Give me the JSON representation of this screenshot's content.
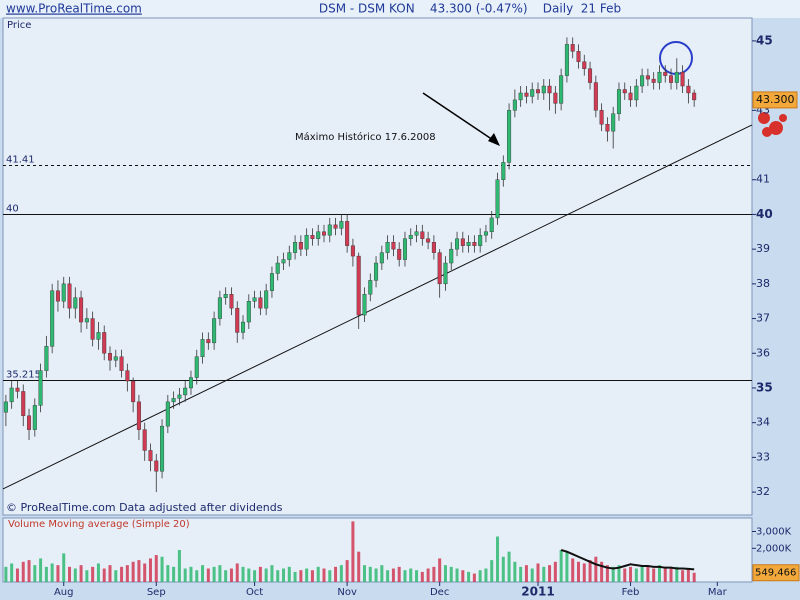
{
  "chart_data": {
    "type": "candlestick",
    "site": "www.ProRealTime.com",
    "title": "DSM - DSM KON    43.300 (-0.47%)    Daily  21 Feb",
    "price_axis_label": "Price",
    "footnote": "© ProRealTime.com Data adjusted after dividends",
    "annotation": "Máximo Histórico 17.6.2008",
    "last_price_label": "43.300",
    "up_color": "#2fb872",
    "down_color": "#d03a52",
    "xlim": [
      -0.5,
      129
    ],
    "xticks": [
      {
        "value": 10,
        "label": "Aug"
      },
      {
        "value": 26,
        "label": "Sep"
      },
      {
        "value": 43,
        "label": "Oct"
      },
      {
        "value": 59,
        "label": "Nov"
      },
      {
        "value": 75,
        "label": "Dec"
      },
      {
        "value": 92,
        "label": "2011"
      },
      {
        "value": 108,
        "label": "Feb"
      },
      {
        "value": 123,
        "label": "Mar"
      }
    ],
    "ylim": [
      31.34,
      45.66
    ],
    "yticks": [
      32,
      33,
      34,
      35,
      36,
      37,
      38,
      39,
      40,
      41,
      43,
      45
    ],
    "hlines": [
      41.41,
      40,
      35.215
    ],
    "hline_dashed": [
      true,
      false,
      false
    ],
    "trendline": {
      "x": [
        -0.5,
        129
      ],
      "y": [
        32.09,
        42.58
      ]
    },
    "open": [
      34.3,
      34.6,
      35.0,
      34.9,
      34.2,
      33.8,
      34.5,
      35.5,
      36.2,
      37.8,
      37.5,
      38.0,
      37.3,
      37.6,
      36.9,
      37.0,
      36.4,
      36.6,
      36.0,
      35.8,
      35.9,
      35.5,
      35.2,
      34.6,
      33.8,
      33.2,
      32.9,
      32.6,
      33.9,
      34.6,
      34.7,
      34.8,
      35.0,
      35.3,
      35.9,
      36.4,
      36.3,
      37.0,
      37.6,
      37.7,
      37.3,
      36.6,
      36.9,
      37.5,
      37.6,
      37.3,
      37.8,
      38.3,
      38.6,
      38.7,
      38.9,
      39.2,
      39.0,
      39.4,
      39.3,
      39.5,
      39.4,
      39.7,
      39.6,
      39.8,
      39.1,
      38.8,
      37.1,
      37.7,
      38.1,
      38.6,
      38.9,
      39.2,
      39.0,
      38.7,
      39.3,
      39.4,
      39.5,
      39.3,
      39.2,
      38.9,
      38.0,
      38.6,
      39.0,
      39.3,
      39.1,
      39.2,
      39.1,
      39.4,
      39.5,
      39.9,
      41.0,
      41.5,
      43.0,
      43.3,
      43.5,
      43.4,
      43.6,
      43.5,
      43.7,
      43.5,
      43.2,
      44.0,
      44.9,
      44.7,
      44.4,
      44.2,
      43.8,
      43.0,
      42.6,
      42.4,
      42.9,
      43.6,
      43.5,
      43.3,
      43.7,
      44.0,
      43.9,
      43.8,
      44.1,
      44.0,
      43.8,
      44.1,
      43.7,
      43.5
    ],
    "high": [
      34.8,
      35.2,
      35.2,
      35.1,
      34.4,
      34.7,
      35.7,
      36.5,
      38.0,
      38.1,
      38.2,
      38.2,
      37.9,
      37.8,
      37.3,
      37.2,
      36.9,
      36.8,
      36.2,
      36.1,
      36.1,
      35.7,
      35.3,
      34.8,
      34.0,
      33.4,
      33.1,
      34.1,
      34.8,
      34.9,
      35.0,
      35.2,
      35.5,
      36.1,
      36.6,
      36.6,
      37.2,
      37.8,
      37.9,
      37.9,
      37.5,
      37.1,
      37.7,
      37.8,
      37.8,
      38.0,
      38.5,
      38.8,
      38.9,
      39.1,
      39.4,
      39.4,
      39.6,
      39.6,
      39.7,
      39.7,
      39.9,
      39.9,
      40.0,
      40.0,
      39.3,
      38.9,
      37.9,
      38.3,
      38.8,
      39.1,
      39.4,
      39.4,
      39.2,
      39.5,
      39.6,
      39.7,
      39.7,
      39.5,
      39.4,
      39.0,
      38.8,
      39.2,
      39.5,
      39.5,
      39.4,
      39.4,
      39.6,
      39.7,
      40.1,
      41.2,
      41.7,
      43.2,
      43.6,
      43.7,
      43.7,
      43.8,
      43.8,
      43.9,
      43.9,
      43.7,
      44.2,
      45.1,
      45.1,
      44.9,
      44.6,
      44.4,
      44.0,
      43.2,
      42.8,
      43.1,
      43.8,
      43.8,
      43.7,
      43.9,
      44.2,
      44.2,
      44.1,
      44.3,
      44.3,
      44.2,
      44.5,
      44.3,
      43.9,
      43.6
    ],
    "low": [
      33.9,
      34.4,
      34.7,
      33.9,
      33.5,
      33.6,
      34.3,
      35.3,
      36.0,
      37.2,
      37.3,
      37.0,
      37.0,
      36.6,
      36.7,
      36.2,
      36.1,
      35.8,
      35.5,
      35.6,
      35.3,
      34.9,
      34.3,
      33.5,
      32.9,
      32.6,
      32.0,
      32.4,
      33.7,
      34.4,
      34.5,
      34.6,
      34.8,
      35.1,
      35.7,
      36.1,
      36.1,
      36.8,
      37.4,
      37.1,
      36.3,
      36.4,
      36.7,
      37.3,
      37.1,
      37.1,
      37.6,
      38.1,
      38.4,
      38.5,
      38.7,
      38.8,
      38.8,
      39.1,
      39.1,
      39.2,
      39.2,
      39.4,
      39.4,
      38.9,
      38.5,
      36.7,
      36.9,
      37.5,
      37.9,
      38.4,
      38.7,
      38.8,
      38.5,
      38.5,
      39.1,
      39.2,
      39.1,
      39.0,
      38.7,
      37.6,
      37.8,
      38.4,
      38.8,
      38.9,
      38.9,
      38.9,
      38.9,
      39.2,
      39.3,
      39.7,
      40.8,
      41.3,
      42.8,
      43.1,
      43.2,
      43.2,
      43.3,
      43.3,
      43.0,
      42.9,
      43.0,
      43.8,
      44.5,
      44.2,
      44.0,
      43.6,
      42.8,
      42.4,
      42.1,
      41.9,
      42.7,
      43.3,
      43.1,
      43.1,
      43.5,
      43.7,
      43.6,
      43.6,
      43.8,
      43.6,
      43.6,
      43.5,
      43.2,
      43.1
    ],
    "close": [
      34.6,
      35.0,
      34.9,
      34.2,
      33.8,
      34.5,
      35.5,
      36.2,
      37.8,
      37.5,
      38.0,
      37.3,
      37.6,
      36.9,
      37.0,
      36.4,
      36.6,
      36.0,
      35.8,
      35.9,
      35.5,
      35.2,
      34.6,
      33.8,
      33.2,
      32.9,
      32.6,
      33.9,
      34.6,
      34.7,
      34.8,
      35.0,
      35.3,
      35.9,
      36.4,
      36.3,
      37.0,
      37.6,
      37.7,
      37.3,
      36.6,
      36.9,
      37.5,
      37.6,
      37.3,
      37.8,
      38.3,
      38.6,
      38.7,
      38.9,
      39.2,
      39.0,
      39.4,
      39.3,
      39.5,
      39.4,
      39.7,
      39.6,
      39.8,
      39.1,
      38.8,
      37.1,
      37.7,
      38.1,
      38.6,
      38.9,
      39.2,
      39.0,
      38.7,
      39.3,
      39.4,
      39.5,
      39.3,
      39.2,
      38.9,
      38.0,
      38.6,
      39.0,
      39.3,
      39.1,
      39.2,
      39.1,
      39.4,
      39.5,
      39.9,
      41.0,
      41.5,
      43.0,
      43.3,
      43.5,
      43.4,
      43.6,
      43.5,
      43.7,
      43.5,
      43.2,
      44.0,
      44.9,
      44.7,
      44.4,
      44.2,
      43.8,
      43.0,
      42.6,
      42.4,
      42.9,
      43.6,
      43.5,
      43.3,
      43.7,
      44.0,
      43.9,
      43.8,
      44.1,
      44.0,
      43.8,
      44.1,
      43.7,
      43.5,
      43.3
    ],
    "volume_title": "Volume Moving average (Simple 20)",
    "volume_last_label": "549,466",
    "volume_ylim": [
      0,
      3800000
    ],
    "volume_yticks": [
      {
        "value": 2000000,
        "label": "2,000K"
      },
      {
        "value": 3000000,
        "label": "3,000K"
      }
    ],
    "volume": [
      900000,
      1100000,
      800000,
      1200000,
      1300000,
      1000000,
      1400000,
      900000,
      1100000,
      1000000,
      1700000,
      900000,
      800000,
      1000000,
      700000,
      900000,
      1100000,
      800000,
      1000000,
      700000,
      900000,
      1000000,
      1200000,
      1300000,
      1100000,
      1400000,
      1600000,
      1500000,
      1000000,
      900000,
      1900000,
      800000,
      900000,
      700000,
      1000000,
      800000,
      900000,
      1000000,
      700000,
      800000,
      1100000,
      900000,
      800000,
      700000,
      900000,
      800000,
      1000000,
      700000,
      800000,
      900000,
      600000,
      700000,
      800000,
      700000,
      900000,
      800000,
      700000,
      900000,
      1000000,
      1300000,
      3600000,
      1800000,
      1000000,
      900000,
      800000,
      1000000,
      700000,
      800000,
      900000,
      700000,
      800000,
      700000,
      600000,
      800000,
      900000,
      1400000,
      1000000,
      900000,
      800000,
      700000,
      600000,
      500000,
      700000,
      800000,
      1300000,
      2700000,
      1500000,
      1800000,
      1200000,
      900000,
      1000000,
      800000,
      1100000,
      900000,
      1000000,
      1200000,
      1900000,
      1800000,
      1400000,
      1200000,
      1100000,
      1300000,
      1500000,
      1200000,
      1000000,
      900000,
      1000000,
      800000,
      900000,
      800000,
      1000000,
      900000,
      800000,
      1000000,
      900000,
      800000,
      900000,
      700000,
      800000,
      549466
    ],
    "volume_ma": [
      null,
      null,
      null,
      null,
      null,
      null,
      null,
      null,
      null,
      null,
      null,
      null,
      null,
      null,
      null,
      null,
      null,
      null,
      null,
      null,
      null,
      null,
      null,
      null,
      null,
      null,
      null,
      null,
      null,
      null,
      null,
      null,
      null,
      null,
      null,
      null,
      null,
      null,
      null,
      null,
      null,
      null,
      null,
      null,
      null,
      null,
      null,
      null,
      null,
      null,
      null,
      null,
      null,
      null,
      null,
      null,
      null,
      null,
      null,
      null,
      null,
      null,
      null,
      null,
      null,
      null,
      null,
      null,
      null,
      null,
      null,
      null,
      null,
      null,
      null,
      null,
      null,
      null,
      null,
      null,
      null,
      null,
      null,
      null,
      null,
      null,
      null,
      null,
      null,
      null,
      null,
      null,
      null,
      null,
      null,
      null,
      1900000,
      1800000,
      1650000,
      1500000,
      1350000,
      1200000,
      1050000,
      950000,
      850000,
      800000,
      850000,
      950000,
      1050000,
      1000000,
      950000,
      950000,
      900000,
      900000,
      850000,
      850000,
      800000,
      800000,
      780000,
      750000
    ]
  }
}
